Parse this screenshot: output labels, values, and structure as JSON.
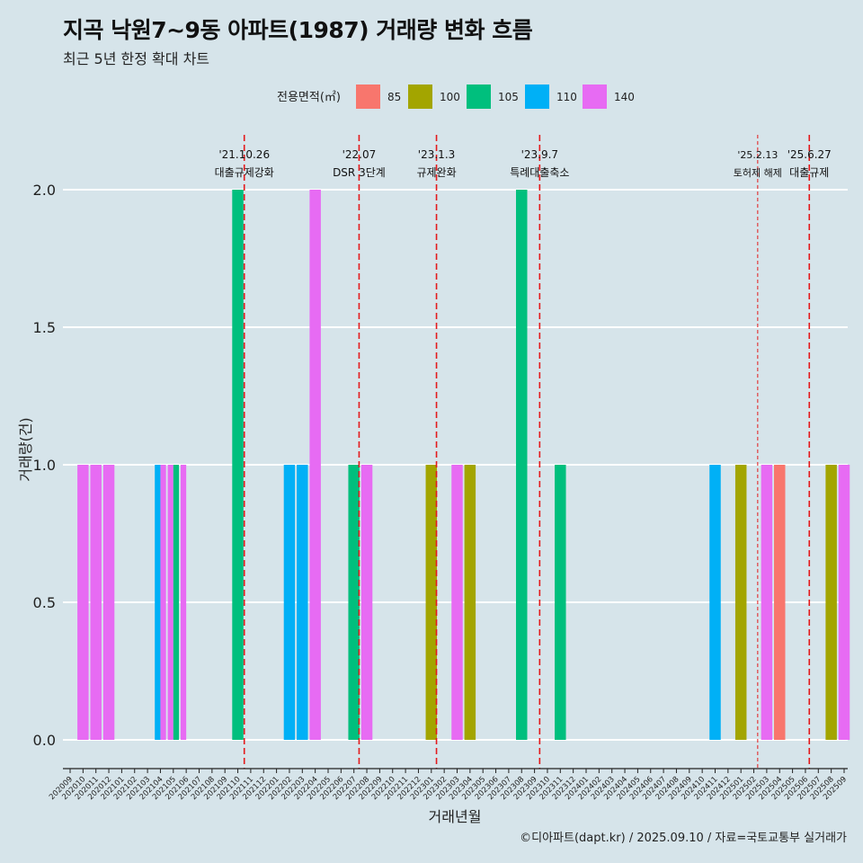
{
  "title": "지곡 낙원7~9동 아파트(1987) 거래량 변화 흐름",
  "subtitle": "최근 5년 한정 확대 차트",
  "caption": "©디아파트(dapt.kr) / 2025.09.10 / 자료=국토교통부 실거래가",
  "colors": {
    "background": "#d6e4ea",
    "85": "#f8766d",
    "100": "#a3a500",
    "105": "#00bf7d",
    "110": "#00b0f6",
    "140": "#e76bf3",
    "event_line": "#e41a1c",
    "grid": "#ffffff"
  },
  "chart_data": {
    "type": "bar",
    "xlabel": "거래년월",
    "ylabel": "거래량(건)",
    "ylim": [
      -0.08,
      2.15
    ],
    "yticks": [
      0.0,
      0.5,
      1.0,
      1.5,
      2.0
    ],
    "ytick_labels": [
      "0.0",
      "0.5",
      "1.0",
      "1.5",
      "2.0"
    ],
    "grid": "horizontal",
    "legend": {
      "title": "전용면적(㎡)",
      "position": "top",
      "entries": [
        "85",
        "100",
        "105",
        "110",
        "140"
      ]
    },
    "categories": [
      "202009",
      "202010",
      "202011",
      "202012",
      "202101",
      "202102",
      "202103",
      "202104",
      "202105",
      "202106",
      "202107",
      "202108",
      "202109",
      "202110",
      "202111",
      "202112",
      "202201",
      "202202",
      "202203",
      "202204",
      "202205",
      "202206",
      "202207",
      "202208",
      "202209",
      "202210",
      "202211",
      "202212",
      "202301",
      "202302",
      "202303",
      "202304",
      "202305",
      "202306",
      "202307",
      "202308",
      "202309",
      "202310",
      "202311",
      "202312",
      "202401",
      "202402",
      "202403",
      "202404",
      "202405",
      "202406",
      "202407",
      "202408",
      "202409",
      "202410",
      "202411",
      "202412",
      "202501",
      "202502",
      "202503",
      "202504",
      "202505",
      "202506",
      "202507",
      "202508",
      "202509"
    ],
    "bars": [
      {
        "month": "202010",
        "area": "140",
        "value": 1,
        "pos": 0
      },
      {
        "month": "202011",
        "area": "140",
        "value": 1,
        "pos": 0
      },
      {
        "month": "202012",
        "area": "140",
        "value": 1,
        "pos": 0
      },
      {
        "month": "202104",
        "area": "110",
        "value": 1,
        "pos": -0.25
      },
      {
        "month": "202104",
        "area": "140",
        "value": 1,
        "pos": 0.25
      },
      {
        "month": "202105",
        "area": "140",
        "value": 1,
        "pos": -0.25
      },
      {
        "month": "202105",
        "area": "105",
        "value": 1,
        "pos": 0.25
      },
      {
        "month": "202106",
        "area": "140",
        "value": 1,
        "pos": -0.25
      },
      {
        "month": "202110",
        "area": "105",
        "value": 2,
        "pos": 0
      },
      {
        "month": "202202",
        "area": "110",
        "value": 1,
        "pos": 0
      },
      {
        "month": "202203",
        "area": "110",
        "value": 1,
        "pos": 0
      },
      {
        "month": "202204",
        "area": "140",
        "value": 2,
        "pos": 0
      },
      {
        "month": "202207",
        "area": "105",
        "value": 1,
        "pos": 0
      },
      {
        "month": "202208",
        "area": "140",
        "value": 1,
        "pos": 0
      },
      {
        "month": "202301",
        "area": "100",
        "value": 1,
        "pos": 0
      },
      {
        "month": "202303",
        "area": "140",
        "value": 1,
        "pos": 0
      },
      {
        "month": "202304",
        "area": "100",
        "value": 1,
        "pos": 0
      },
      {
        "month": "202308",
        "area": "105",
        "value": 2,
        "pos": 0
      },
      {
        "month": "202311",
        "area": "105",
        "value": 1,
        "pos": 0
      },
      {
        "month": "202411",
        "area": "110",
        "value": 1,
        "pos": 0
      },
      {
        "month": "202501",
        "area": "100",
        "value": 1,
        "pos": 0
      },
      {
        "month": "202503",
        "area": "140",
        "value": 1,
        "pos": 0
      },
      {
        "month": "202504",
        "area": "85",
        "value": 1,
        "pos": 0
      },
      {
        "month": "202508",
        "area": "100",
        "value": 1,
        "pos": 0
      },
      {
        "month": "202509",
        "area": "140",
        "value": 1,
        "pos": 0
      }
    ],
    "events": [
      {
        "date_label": "'21.10.26",
        "text": "대출규제강화",
        "x": 13.5,
        "dashed_style": "long"
      },
      {
        "date_label": "'22.07",
        "text": "DSR 3단계",
        "x": 22.4,
        "dashed_style": "long"
      },
      {
        "date_label": "'23.1.3",
        "text": "규제완화",
        "x": 28.4,
        "dashed_style": "long"
      },
      {
        "date_label": "'23.9.7",
        "text": "특례대출축소",
        "x": 36.4,
        "dashed_style": "long"
      },
      {
        "date_label": "'25.2.13",
        "text": "토허제 해제",
        "x": 53.3,
        "dashed_style": "short"
      },
      {
        "date_label": "'25.6.27",
        "text": "대출규제",
        "x": 57.3,
        "dashed_style": "long"
      }
    ]
  }
}
